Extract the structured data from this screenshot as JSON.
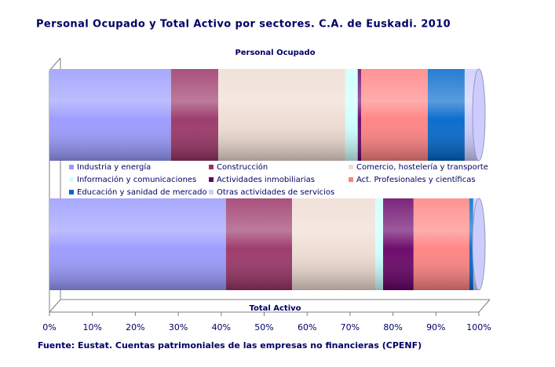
{
  "chart_data": {
    "type": "bar",
    "orientation": "horizontal",
    "stacked": true,
    "title": "Personal Ocupado y Total Activo por sectores. C.A. de Euskadi. 2010",
    "source": "Fuente: Eustat. Cuentas patrimoniales de las empresas no financieras (CPENF)",
    "categories": [
      "Personal Ocupado",
      "Total Activo"
    ],
    "series": [
      {
        "name": "Industria y energía",
        "color": "#9999ff",
        "values": [
          28.3,
          41.1
        ]
      },
      {
        "name": "Construcción",
        "color": "#993366",
        "values": [
          11.0,
          15.4
        ]
      },
      {
        "name": "Comercio, hostelería y transporte",
        "color": "#eedcd2",
        "values": [
          29.6,
          19.4
        ]
      },
      {
        "name": "Información y comunicaciones",
        "color": "#ccffff",
        "values": [
          2.9,
          1.8
        ]
      },
      {
        "name": "Actividades inmobiliarias",
        "color": "#660066",
        "values": [
          0.8,
          7.1
        ]
      },
      {
        "name": "Act. Profesionales y científicas",
        "color": "#ff8080",
        "values": [
          15.5,
          13.0
        ]
      },
      {
        "name": "Educación y sanidad de mercado",
        "color": "#0066cc",
        "values": [
          8.6,
          0.9
        ]
      },
      {
        "name": "Otras actividades de servicios",
        "color": "#ccccff",
        "values": [
          3.3,
          1.3
        ]
      }
    ],
    "xlim": [
      0,
      100
    ],
    "xticks": [
      {
        "value": 0,
        "label": "0%"
      },
      {
        "value": 10,
        "label": "10%"
      },
      {
        "value": 20,
        "label": "20%"
      },
      {
        "value": 30,
        "label": "30%"
      },
      {
        "value": 40,
        "label": "40%"
      },
      {
        "value": 50,
        "label": "50%"
      },
      {
        "value": 60,
        "label": "60%"
      },
      {
        "value": 70,
        "label": "70%"
      },
      {
        "value": 80,
        "label": "80%"
      },
      {
        "value": 90,
        "label": "90%"
      },
      {
        "value": 100,
        "label": "100%"
      }
    ]
  }
}
